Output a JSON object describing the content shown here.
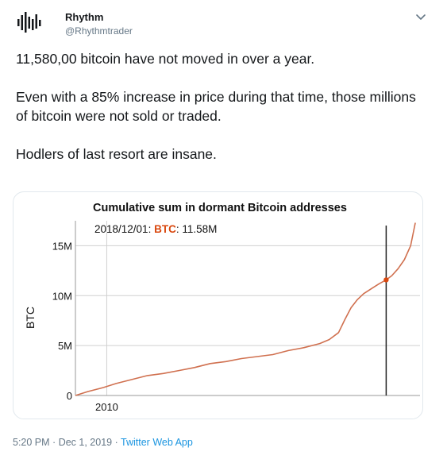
{
  "tweet": {
    "author_name": "Rhythm",
    "author_handle": "@Rhythmtrader",
    "paragraphs": [
      "11,580,00 bitcoin have not moved in over a year.",
      "Even with a 85% increase in price during that time, those millions of bitcoin were not sold or traded.",
      "Hodlers of last resort are insane."
    ],
    "time": "5:20 PM",
    "separator": "·",
    "date": "Dec 1, 2019",
    "app": "Twitter Web App"
  },
  "icons": {
    "avatar": "soundwave-logo-icon",
    "menu": "chevron-down-icon"
  },
  "colors": {
    "series": "#d0704f",
    "annotation_btc": "#d9480f",
    "link": "#1b95e0",
    "muted": "#657786"
  },
  "chart_data": {
    "type": "line",
    "title": "Cumulative sum in dormant Bitcoin addresses",
    "annotation": {
      "date": "2018/12/01",
      "label": "BTC",
      "separator": ": ",
      "value": "11.58M",
      "x": 2018.92,
      "y": 11.58
    },
    "ylabel": "BTC",
    "xlabel": "",
    "yticks": [
      0,
      5,
      10,
      15
    ],
    "ytick_labels": [
      "0",
      "5M",
      "10M",
      "15M"
    ],
    "xticks": [
      2010
    ],
    "xtick_labels": [
      "2010"
    ],
    "xlim": [
      2009.0,
      2020.0
    ],
    "ylim": [
      0,
      17.5
    ],
    "grid": true,
    "series": [
      {
        "x": [
          2009.0,
          2009.4,
          2009.9,
          2010.3,
          2010.8,
          2011.3,
          2011.8,
          2012.3,
          2012.8,
          2013.3,
          2013.8,
          2014.3,
          2014.8,
          2015.3,
          2015.8,
          2016.3,
          2016.8,
          2017.1,
          2017.4,
          2017.6,
          2017.8,
          2018.0,
          2018.2,
          2018.5,
          2018.7,
          2018.92,
          2019.1,
          2019.3,
          2019.5,
          2019.7,
          2019.85
        ],
        "y": [
          0.0,
          0.4,
          0.8,
          1.2,
          1.6,
          2.0,
          2.2,
          2.5,
          2.8,
          3.2,
          3.4,
          3.7,
          3.9,
          4.1,
          4.5,
          4.8,
          5.2,
          5.6,
          6.3,
          7.6,
          8.8,
          9.6,
          10.2,
          10.8,
          11.2,
          11.58,
          12.0,
          12.7,
          13.6,
          15.0,
          17.3
        ]
      }
    ]
  }
}
